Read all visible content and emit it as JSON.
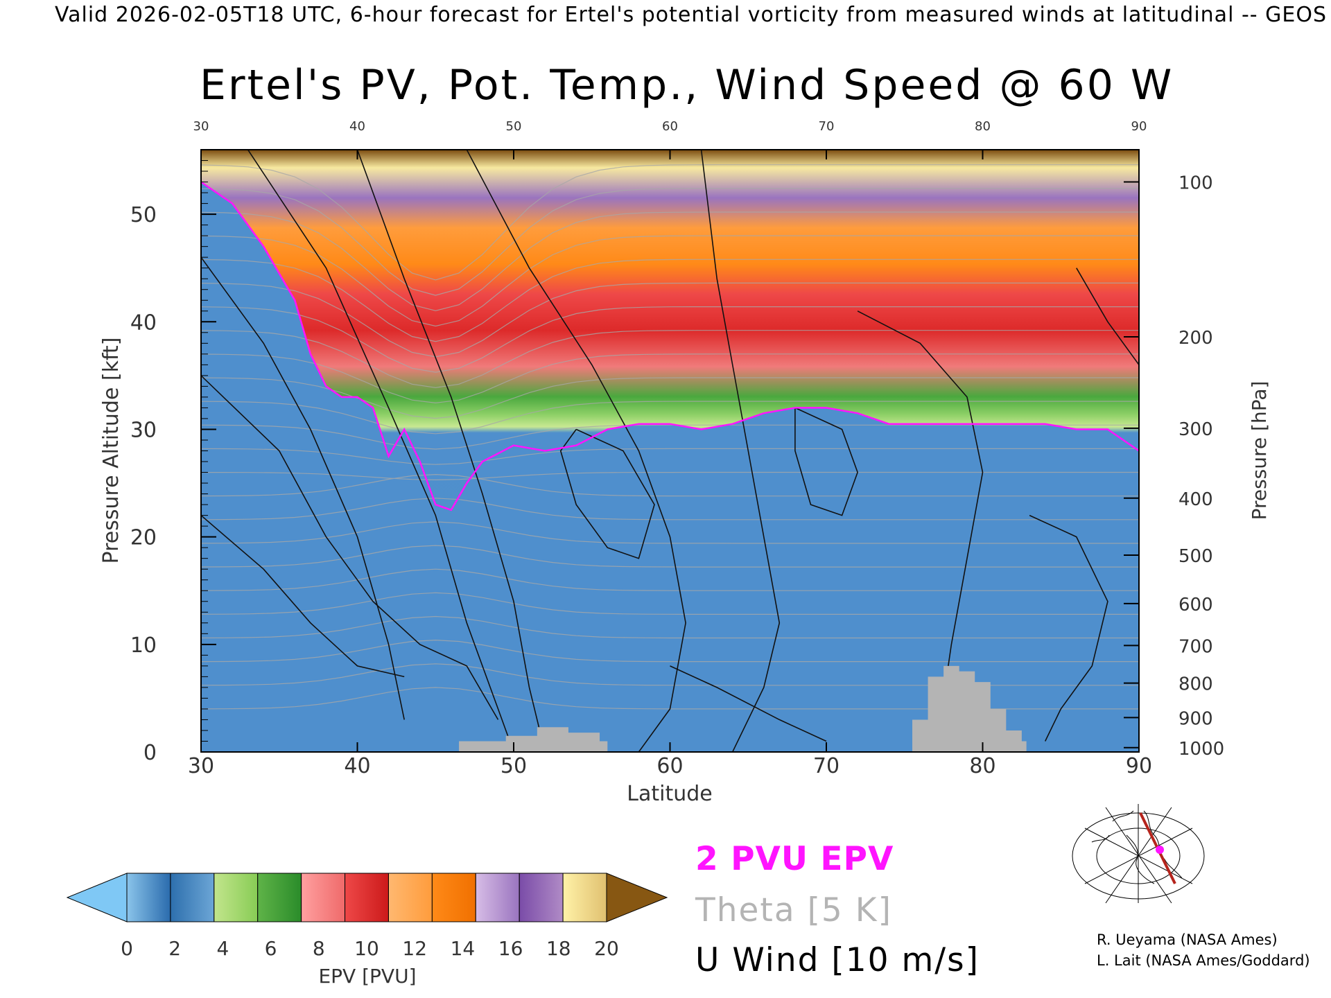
{
  "header": {
    "caption": "Valid 2026-02-05T18 UTC, 6-hour forecast for Ertel's potential vorticity from measured winds at latitudinal -- GEOS"
  },
  "chart_data": {
    "type": "heatmap",
    "title": "Ertel's PV, Pot. Temp., Wind Speed @ 60 W",
    "xlabel": "Latitude",
    "ylabel": "Pressure Altitude [kft]",
    "y2label": "Pressure [hPa]",
    "xlim": [
      30,
      90
    ],
    "ylim": [
      0,
      56
    ],
    "x_ticks": [
      30,
      40,
      50,
      60,
      70,
      80,
      90
    ],
    "y_ticks": [
      0,
      10,
      20,
      30,
      40,
      50
    ],
    "pressure_ticks": [
      {
        "label": "100",
        "kft": 53.0
      },
      {
        "label": "200",
        "kft": 38.6
      },
      {
        "label": "300",
        "kft": 30.1
      },
      {
        "label": "400",
        "kft": 23.6
      },
      {
        "label": "500",
        "kft": 18.3
      },
      {
        "label": "600",
        "kft": 13.8
      },
      {
        "label": "700",
        "kft": 9.9
      },
      {
        "label": "800",
        "kft": 6.4
      },
      {
        "label": "900",
        "kft": 3.2
      },
      {
        "label": "1000",
        "kft": 0.4
      }
    ],
    "tropopause_2pvu_kft": [
      {
        "lat": 30,
        "kft": 53
      },
      {
        "lat": 32,
        "kft": 51
      },
      {
        "lat": 34,
        "kft": 47
      },
      {
        "lat": 36,
        "kft": 42
      },
      {
        "lat": 37,
        "kft": 37
      },
      {
        "lat": 38,
        "kft": 34
      },
      {
        "lat": 39,
        "kft": 33
      },
      {
        "lat": 40,
        "kft": 33
      },
      {
        "lat": 41,
        "kft": 32
      },
      {
        "lat": 42,
        "kft": 27.5
      },
      {
        "lat": 43,
        "kft": 30
      },
      {
        "lat": 44,
        "kft": 27
      },
      {
        "lat": 45,
        "kft": 23
      },
      {
        "lat": 46,
        "kft": 22.5
      },
      {
        "lat": 47,
        "kft": 25
      },
      {
        "lat": 48,
        "kft": 27
      },
      {
        "lat": 50,
        "kft": 28.5
      },
      {
        "lat": 52,
        "kft": 28
      },
      {
        "lat": 54,
        "kft": 28.5
      },
      {
        "lat": 56,
        "kft": 30
      },
      {
        "lat": 58,
        "kft": 30.5
      },
      {
        "lat": 60,
        "kft": 30.5
      },
      {
        "lat": 62,
        "kft": 30
      },
      {
        "lat": 64,
        "kft": 30.5
      },
      {
        "lat": 66,
        "kft": 31.5
      },
      {
        "lat": 68,
        "kft": 32
      },
      {
        "lat": 70,
        "kft": 32
      },
      {
        "lat": 72,
        "kft": 31.5
      },
      {
        "lat": 74,
        "kft": 30.5
      },
      {
        "lat": 76,
        "kft": 30.5
      },
      {
        "lat": 78,
        "kft": 30.5
      },
      {
        "lat": 80,
        "kft": 30.5
      },
      {
        "lat": 82,
        "kft": 30.5
      },
      {
        "lat": 84,
        "kft": 30.5
      },
      {
        "lat": 86,
        "kft": 30
      },
      {
        "lat": 88,
        "kft": 30
      },
      {
        "lat": 90,
        "kft": 28
      }
    ],
    "terrain_kft": [
      {
        "lat": 46.5,
        "kft": 1
      },
      {
        "lat": 49.5,
        "kft": 1.5
      },
      {
        "lat": 51.5,
        "kft": 2.3
      },
      {
        "lat": 53.5,
        "kft": 1.8
      },
      {
        "lat": 55.5,
        "kft": 1
      },
      {
        "lat": 56,
        "kft": 0
      },
      {
        "lat": 75.5,
        "kft": 3
      },
      {
        "lat": 76.5,
        "kft": 7
      },
      {
        "lat": 77.5,
        "kft": 8
      },
      {
        "lat": 78.5,
        "kft": 7.5
      },
      {
        "lat": 79.5,
        "kft": 6.5
      },
      {
        "lat": 80.5,
        "kft": 4
      },
      {
        "lat": 81.5,
        "kft": 2
      },
      {
        "lat": 82.5,
        "kft": 1
      },
      {
        "lat": 82.8,
        "kft": 0
      }
    ],
    "colorbar": {
      "label": "EPV [PVU]",
      "ticks": [
        "0",
        "2",
        "4",
        "6",
        "8",
        "10",
        "12",
        "14",
        "16",
        "18",
        "20"
      ],
      "under_color": "#7fc8f5",
      "over_color": "#875712",
      "band_colors": [
        [
          "#8ac4ea",
          "#2a6bad"
        ],
        [
          "#2d6fad",
          "#6ca6d6"
        ],
        [
          "#c2e58c",
          "#88cc55"
        ],
        [
          "#5fb348",
          "#2a8c2a"
        ],
        [
          "#ffa0a0",
          "#ef6a6a"
        ],
        [
          "#ee4848",
          "#cc1a1a"
        ],
        [
          "#ffb870",
          "#ff9c3c"
        ],
        [
          "#ff8a18",
          "#f07000"
        ],
        [
          "#d7bde6",
          "#9a74bf"
        ],
        [
          "#7a4ca8",
          "#b08bc6"
        ],
        [
          "#fff2a8",
          "#e0c070"
        ]
      ]
    }
  },
  "legend": {
    "pvu_label": "2 PVU EPV",
    "theta_label": "Theta [5 K]",
    "u_label": "U Wind [10 m/s]",
    "pvu_color": "#ff14ff",
    "theta_color": "#b4b4b4"
  },
  "credits": {
    "line1": "R. Ueyama (NASA Ames)",
    "line2": "L. Lait (NASA Ames/Goddard)"
  },
  "inset_map": {
    "icon": "globe-locator-map-icon",
    "route_color": "#b5241c",
    "marker_color": "#ff14ff"
  }
}
